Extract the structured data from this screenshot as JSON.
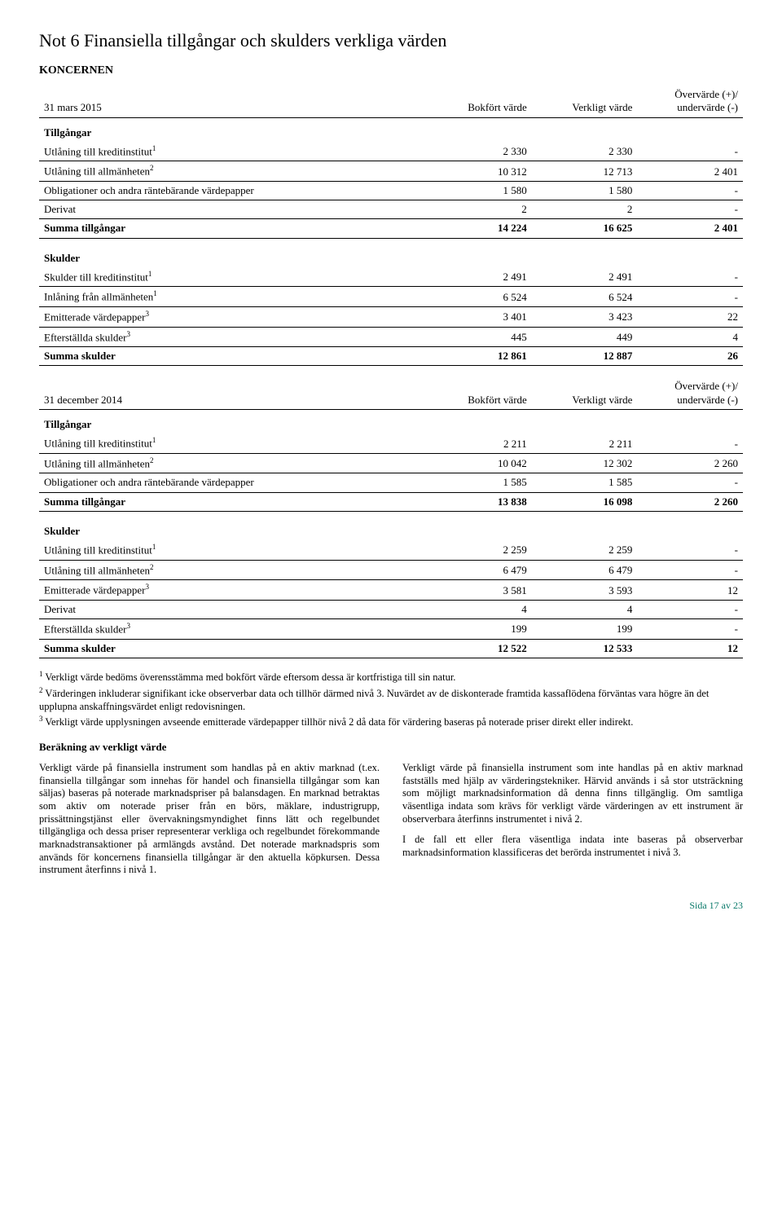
{
  "title": "Not 6 Finansiella tillgångar och skulders verkliga värden",
  "subhead": "KONCERNEN",
  "header_cols": {
    "date1": "31 mars 2015",
    "date2": "31 december 2014",
    "bokfort": "Bokfört värde",
    "verkligt": "Verkligt värde",
    "overunder": "Övervärde (+)/ undervärde (-)"
  },
  "section_labels": {
    "tillgangar": "Tillgångar",
    "skulder": "Skulder"
  },
  "t1": {
    "assets": [
      {
        "label": "Utlåning till kreditinstitut",
        "sup": "1",
        "c1": "2 330",
        "c2": "2 330",
        "c3": "-"
      },
      {
        "label": "Utlåning till allmänheten",
        "sup": "2",
        "c1": "10 312",
        "c2": "12 713",
        "c3": "2 401"
      },
      {
        "label": "Obligationer och andra räntebärande värdepapper",
        "sup": "",
        "c1": "1 580",
        "c2": "1 580",
        "c3": "-"
      },
      {
        "label": "Derivat",
        "sup": "",
        "c1": "2",
        "c2": "2",
        "c3": "-"
      }
    ],
    "assets_total": {
      "label": "Summa tillgångar",
      "c1": "14 224",
      "c2": "16 625",
      "c3": "2 401"
    },
    "liab": [
      {
        "label": "Skulder till kreditinstitut",
        "sup": "1",
        "c1": "2 491",
        "c2": "2 491",
        "c3": "-"
      },
      {
        "label": "Inlåning från allmänheten",
        "sup": "1",
        "c1": "6 524",
        "c2": "6 524",
        "c3": "-"
      },
      {
        "label": "Emitterade värdepapper",
        "sup": "3",
        "c1": "3 401",
        "c2": "3 423",
        "c3": "22"
      },
      {
        "label": "Efterställda skulder",
        "sup": "3",
        "c1": "445",
        "c2": "449",
        "c3": "4"
      }
    ],
    "liab_total": {
      "label": "Summa skulder",
      "c1": "12 861",
      "c2": "12 887",
      "c3": "26"
    }
  },
  "t2": {
    "assets": [
      {
        "label": "Utlåning till kreditinstitut",
        "sup": "1",
        "c1": "2 211",
        "c2": "2 211",
        "c3": "-"
      },
      {
        "label": "Utlåning till allmänheten",
        "sup": "2",
        "c1": "10 042",
        "c2": "12 302",
        "c3": "2 260"
      },
      {
        "label": "Obligationer och andra räntebärande värdepapper",
        "sup": "",
        "c1": "1 585",
        "c2": "1 585",
        "c3": "-"
      }
    ],
    "assets_total": {
      "label": "Summa tillgångar",
      "c1": "13 838",
      "c2": "16 098",
      "c3": "2 260"
    },
    "liab": [
      {
        "label": "Utlåning till kreditinstitut",
        "sup": "1",
        "c1": "2 259",
        "c2": "2 259",
        "c3": "-"
      },
      {
        "label": "Utlåning till allmänheten",
        "sup": "2",
        "c1": "6 479",
        "c2": "6 479",
        "c3": "-"
      },
      {
        "label": "Emitterade värdepapper",
        "sup": "3",
        "c1": "3 581",
        "c2": "3 593",
        "c3": "12"
      },
      {
        "label": "Derivat",
        "sup": "",
        "c1": "4",
        "c2": "4",
        "c3": "-"
      },
      {
        "label": "Efterställda skulder",
        "sup": "3",
        "c1": "199",
        "c2": "199",
        "c3": "-"
      }
    ],
    "liab_total": {
      "label": "Summa skulder",
      "c1": "12 522",
      "c2": "12 533",
      "c3": "12"
    }
  },
  "footnotes": {
    "fn1_sup": "1",
    "fn1": " Verkligt värde bedöms överensstämma med bokfört värde eftersom dessa är kortfristiga till sin natur.",
    "fn2_sup": "2",
    "fn2": " Värderingen inkluderar signifikant icke observerbar data och tillhör därmed nivå 3. Nuvärdet av de diskonterade framtida kassaflödena förväntas vara högre än det upplupna anskaffningsvärdet enligt redovisningen.",
    "fn3_sup": "3",
    "fn3": " Verkligt värde upplysningen avseende emitterade värdepapper tillhör nivå 2 då data för värdering baseras på noterade priser direkt eller indirekt."
  },
  "calc_title": "Beräkning av verkligt värde",
  "columns": {
    "left_p1": "Verkligt värde på finansiella instrument som handlas på en aktiv marknad (t.ex. finansiella tillgångar som innehas för handel och finansiella tillgångar som kan säljas) baseras på noterade marknadspriser på balansdagen. En marknad betraktas som aktiv om noterade priser från en börs, mäklare, industrigrupp, prissättningstjänst eller övervakningsmyndighet finns lätt och regelbundet tillgängliga och dessa priser representerar verkliga och regelbundet förekommande marknadstransaktioner på armlängds avstånd. Det noterade marknadspris som används för koncernens finansiella tillgångar är den aktuella köpkursen. Dessa instrument återfinns i nivå 1.",
    "right_p1": "Verkligt värde på finansiella instrument som inte handlas på en aktiv marknad fastställs med hjälp av värderingstekniker. Härvid används i så stor utsträckning som möjligt marknadsinformation då denna finns tillgänglig. Om samtliga väsentliga indata som krävs för verkligt värde värderingen av ett instrument är observerbara återfinns instrumentet i nivå 2.",
    "right_p2": "I de fall ett eller flera väsentliga indata inte baseras på observerbar marknadsinformation klassificeras det berörda instrumentet i nivå 3."
  },
  "footer": "Sida 17 av 23"
}
